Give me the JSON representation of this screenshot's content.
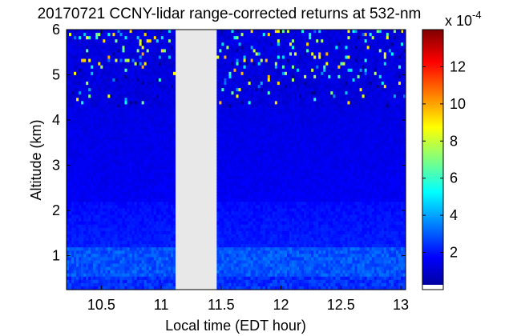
{
  "chart_data": {
    "type": "heatmap",
    "title": "20170721 CCNY-lidar range-corrected returns at 532-nm",
    "xlabel": "Local time (EDT hour)",
    "ylabel": "Altitude (km)",
    "xlim": [
      10.21,
      13.04
    ],
    "ylim": [
      0.25,
      6.0
    ],
    "xticks": [
      "10.5",
      "11",
      "11.5",
      "12",
      "12.5",
      "13"
    ],
    "xtick_values": [
      10.5,
      11,
      11.5,
      12,
      12.5,
      13
    ],
    "yticks": [
      "1",
      "2",
      "3",
      "4",
      "5",
      "6"
    ],
    "ytick_values": [
      1,
      2,
      3,
      4,
      5,
      6
    ],
    "data_gap": [
      11.12,
      11.46
    ],
    "colorbar": {
      "multiplier": "x 10",
      "exponent": "-4",
      "range": [
        0,
        14
      ],
      "ticks": [
        "2",
        "4",
        "6",
        "8",
        "10",
        "12"
      ],
      "tick_values": [
        2,
        4,
        6,
        8,
        10,
        12
      ],
      "colormap": "jet"
    },
    "description_values": {
      "boundary_layer_top_km": 1.2,
      "typical_value_e4": 1.6,
      "max_value_e4": 14
    },
    "colors": {
      "gap": "#e8e8e8",
      "low": "#00008f",
      "mid": "#0040ff",
      "high": "#800000"
    }
  }
}
